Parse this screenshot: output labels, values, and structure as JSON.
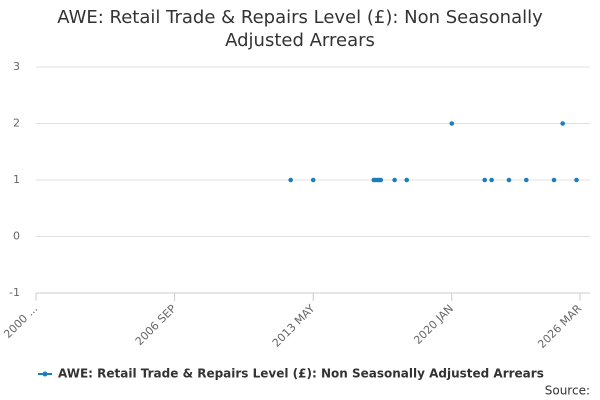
{
  "chart_data": {
    "type": "scatter",
    "title": "AWE: Retail Trade & Repairs Level (£): Non Seasonally Adjusted Arrears",
    "series": [
      {
        "name": "AWE: Retail Trade & Repairs Level (£): Non Seasonally Adjusted Arrears",
        "color": "#1f7db8",
        "x": [
          "2012 APR",
          "2013 MAY",
          "2016 APR",
          "2016 MAY",
          "2016 JUN",
          "2016 JUL",
          "2016 AUG",
          "2017 APR",
          "2017 NOV",
          "2020 JAN",
          "2021 AUG",
          "2021 DEC",
          "2022 OCT",
          "2023 AUG",
          "2024 DEC",
          "2025 MAY",
          "2026 JAN"
        ],
        "values": [
          1,
          1,
          1,
          1,
          1,
          1,
          1,
          1,
          1,
          2,
          1,
          1,
          1,
          1,
          1,
          2,
          1
        ]
      }
    ],
    "xlim": [
      "2000 JAN",
      "2026 MAR"
    ],
    "xticks": [
      {
        "value": "2000 JAN",
        "label": "2000 ..."
      },
      "2006 SEP",
      "2013 MAY",
      "2020 JAN",
      "2026 MAR"
    ],
    "ylim": [
      -1,
      3
    ],
    "yticks": [
      -1,
      0,
      1,
      2,
      3
    ],
    "grid": true,
    "legend": "bottom",
    "source": "Source:"
  }
}
